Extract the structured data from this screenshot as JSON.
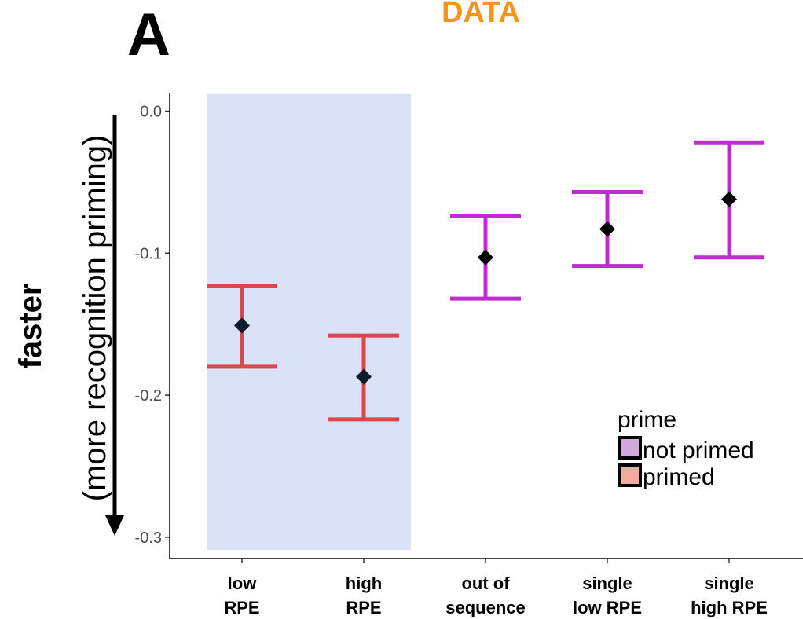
{
  "chart_data": {
    "type": "errorbar",
    "panel_label": "A",
    "title": "DATA",
    "ylabel_bold": "faster",
    "ylabel": "(more recognition priming)",
    "yticks": [
      0.0,
      -0.1,
      -0.2,
      -0.3
    ],
    "ytick_labels": [
      "0.0",
      "-0.1",
      "-0.2",
      "-0.3"
    ],
    "ylim": [
      -0.315,
      0.013
    ],
    "categories": [
      [
        "low",
        "RPE"
      ],
      [
        "high",
        "RPE"
      ],
      [
        "out of",
        "sequence"
      ],
      [
        "single",
        "low RPE"
      ],
      [
        "single",
        "high RPE"
      ]
    ],
    "points": [
      {
        "y": -0.151,
        "lower": -0.18,
        "upper": -0.123,
        "prime": "primed"
      },
      {
        "y": -0.187,
        "lower": -0.217,
        "upper": -0.158,
        "prime": "primed"
      },
      {
        "y": -0.103,
        "lower": -0.132,
        "upper": -0.074,
        "prime": "not primed"
      },
      {
        "y": -0.083,
        "lower": -0.109,
        "upper": -0.057,
        "prime": "not primed"
      },
      {
        "y": -0.062,
        "lower": -0.103,
        "upper": -0.022,
        "prime": "not primed"
      }
    ],
    "highlight_categories": [
      0,
      1
    ],
    "colors": {
      "primed": "#d9464b",
      "not primed": "#bf2bd0",
      "primed_swatch": "#f4aa9d",
      "not_primed_swatch": "#d3a8dc",
      "highlight": "#d9e2f7",
      "marker": "#000000",
      "marker_first": "#0d1b2e"
    },
    "legend": {
      "title": "prime",
      "entries": [
        "not primed",
        "primed"
      ],
      "position": "bottom-right"
    }
  }
}
